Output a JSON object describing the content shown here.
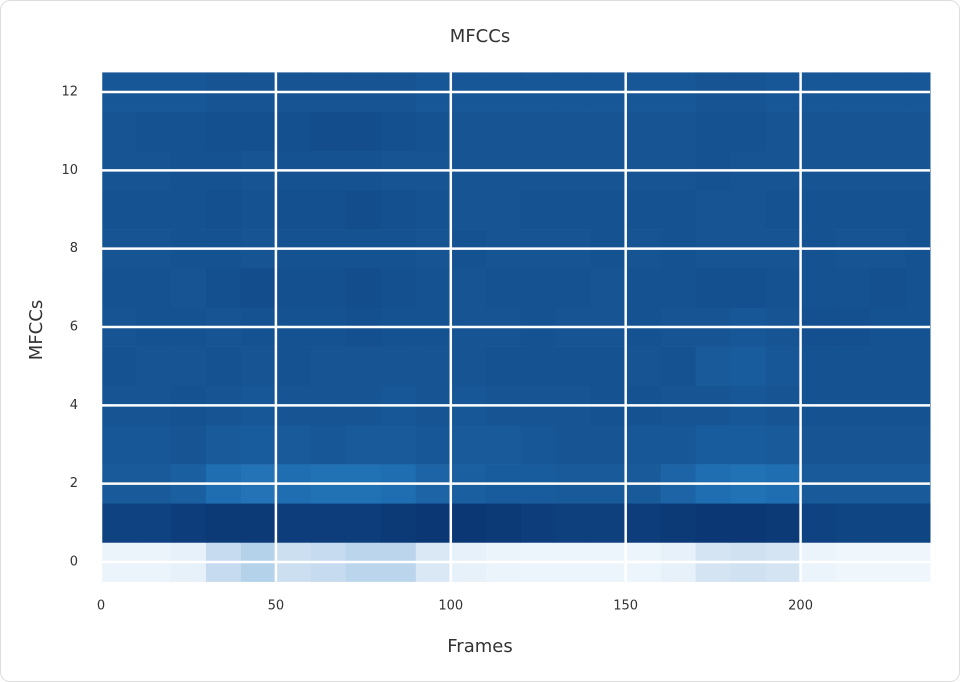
{
  "chart_data": {
    "type": "heatmap",
    "title": "MFCCs",
    "xlabel": "Frames",
    "ylabel": "MFCCs",
    "xbins": [
      0,
      10,
      20,
      30,
      40,
      50,
      60,
      70,
      80,
      90,
      100,
      110,
      120,
      130,
      140,
      150,
      160,
      170,
      180,
      190,
      200,
      210,
      220,
      230,
      237
    ],
    "y": [
      0,
      1,
      2,
      3,
      4,
      5,
      6,
      7,
      8,
      9,
      10,
      11,
      12
    ],
    "values": [
      [
        6,
        6,
        8,
        25,
        30,
        22,
        25,
        28,
        28,
        15,
        8,
        6,
        5,
        5,
        5,
        5,
        8,
        18,
        20,
        18,
        6,
        4,
        4,
        4
      ],
      [
        93,
        93,
        95,
        96,
        96,
        95,
        95,
        95,
        96,
        97,
        97,
        96,
        95,
        94,
        94,
        95,
        96,
        97,
        97,
        96,
        93,
        92,
        92,
        92
      ],
      [
        84,
        84,
        82,
        76,
        74,
        76,
        75,
        75,
        76,
        80,
        82,
        83,
        83,
        84,
        84,
        84,
        80,
        76,
        75,
        76,
        84,
        84,
        84,
        84
      ],
      [
        85,
        85,
        86,
        84,
        83,
        84,
        85,
        84,
        84,
        85,
        84,
        84,
        85,
        86,
        86,
        85,
        85,
        83,
        83,
        84,
        86,
        86,
        86,
        86
      ],
      [
        86,
        86,
        87,
        86,
        85,
        86,
        86,
        86,
        85,
        86,
        85,
        86,
        86,
        86,
        87,
        87,
        86,
        86,
        85,
        86,
        87,
        87,
        87,
        87
      ],
      [
        87,
        86,
        86,
        87,
        86,
        87,
        86,
        86,
        86,
        86,
        86,
        87,
        87,
        87,
        87,
        86,
        87,
        84,
        83,
        85,
        87,
        87,
        87,
        87
      ],
      [
        86,
        87,
        87,
        86,
        87,
        87,
        87,
        88,
        87,
        87,
        86,
        86,
        87,
        86,
        86,
        87,
        86,
        86,
        85,
        86,
        88,
        88,
        87,
        87
      ],
      [
        87,
        87,
        86,
        88,
        89,
        88,
        88,
        89,
        88,
        87,
        86,
        87,
        87,
        87,
        86,
        87,
        87,
        88,
        88,
        87,
        87,
        87,
        88,
        87
      ],
      [
        86,
        86,
        87,
        87,
        86,
        87,
        87,
        87,
        87,
        86,
        87,
        86,
        86,
        86,
        87,
        86,
        87,
        86,
        86,
        86,
        87,
        86,
        86,
        87
      ],
      [
        87,
        87,
        87,
        88,
        87,
        88,
        88,
        89,
        88,
        87,
        86,
        86,
        87,
        87,
        87,
        87,
        87,
        86,
        86,
        87,
        87,
        87,
        87,
        87
      ],
      [
        86,
        86,
        87,
        87,
        86,
        87,
        87,
        87,
        86,
        86,
        86,
        86,
        86,
        86,
        86,
        86,
        86,
        87,
        86,
        86,
        86,
        86,
        86,
        86
      ],
      [
        86,
        87,
        87,
        88,
        88,
        88,
        89,
        89,
        88,
        87,
        86,
        86,
        86,
        86,
        86,
        86,
        86,
        87,
        87,
        86,
        86,
        86,
        86,
        86
      ],
      [
        85,
        85,
        85,
        86,
        86,
        86,
        86,
        86,
        86,
        85,
        85,
        85,
        85,
        85,
        85,
        85,
        85,
        86,
        86,
        85,
        85,
        85,
        85,
        85
      ]
    ],
    "clim": [
      0,
      100
    ],
    "colormap": [
      "#f7fbff",
      "#c6dbef",
      "#6baed6",
      "#2171b5",
      "#08306b"
    ],
    "xlim": [
      0,
      237
    ],
    "ylim": [
      -0.5,
      12.5
    ],
    "xticks": [
      0,
      50,
      100,
      150,
      200
    ],
    "yticks": [
      0,
      2,
      4,
      6,
      8,
      10,
      12
    ],
    "grid": true
  }
}
